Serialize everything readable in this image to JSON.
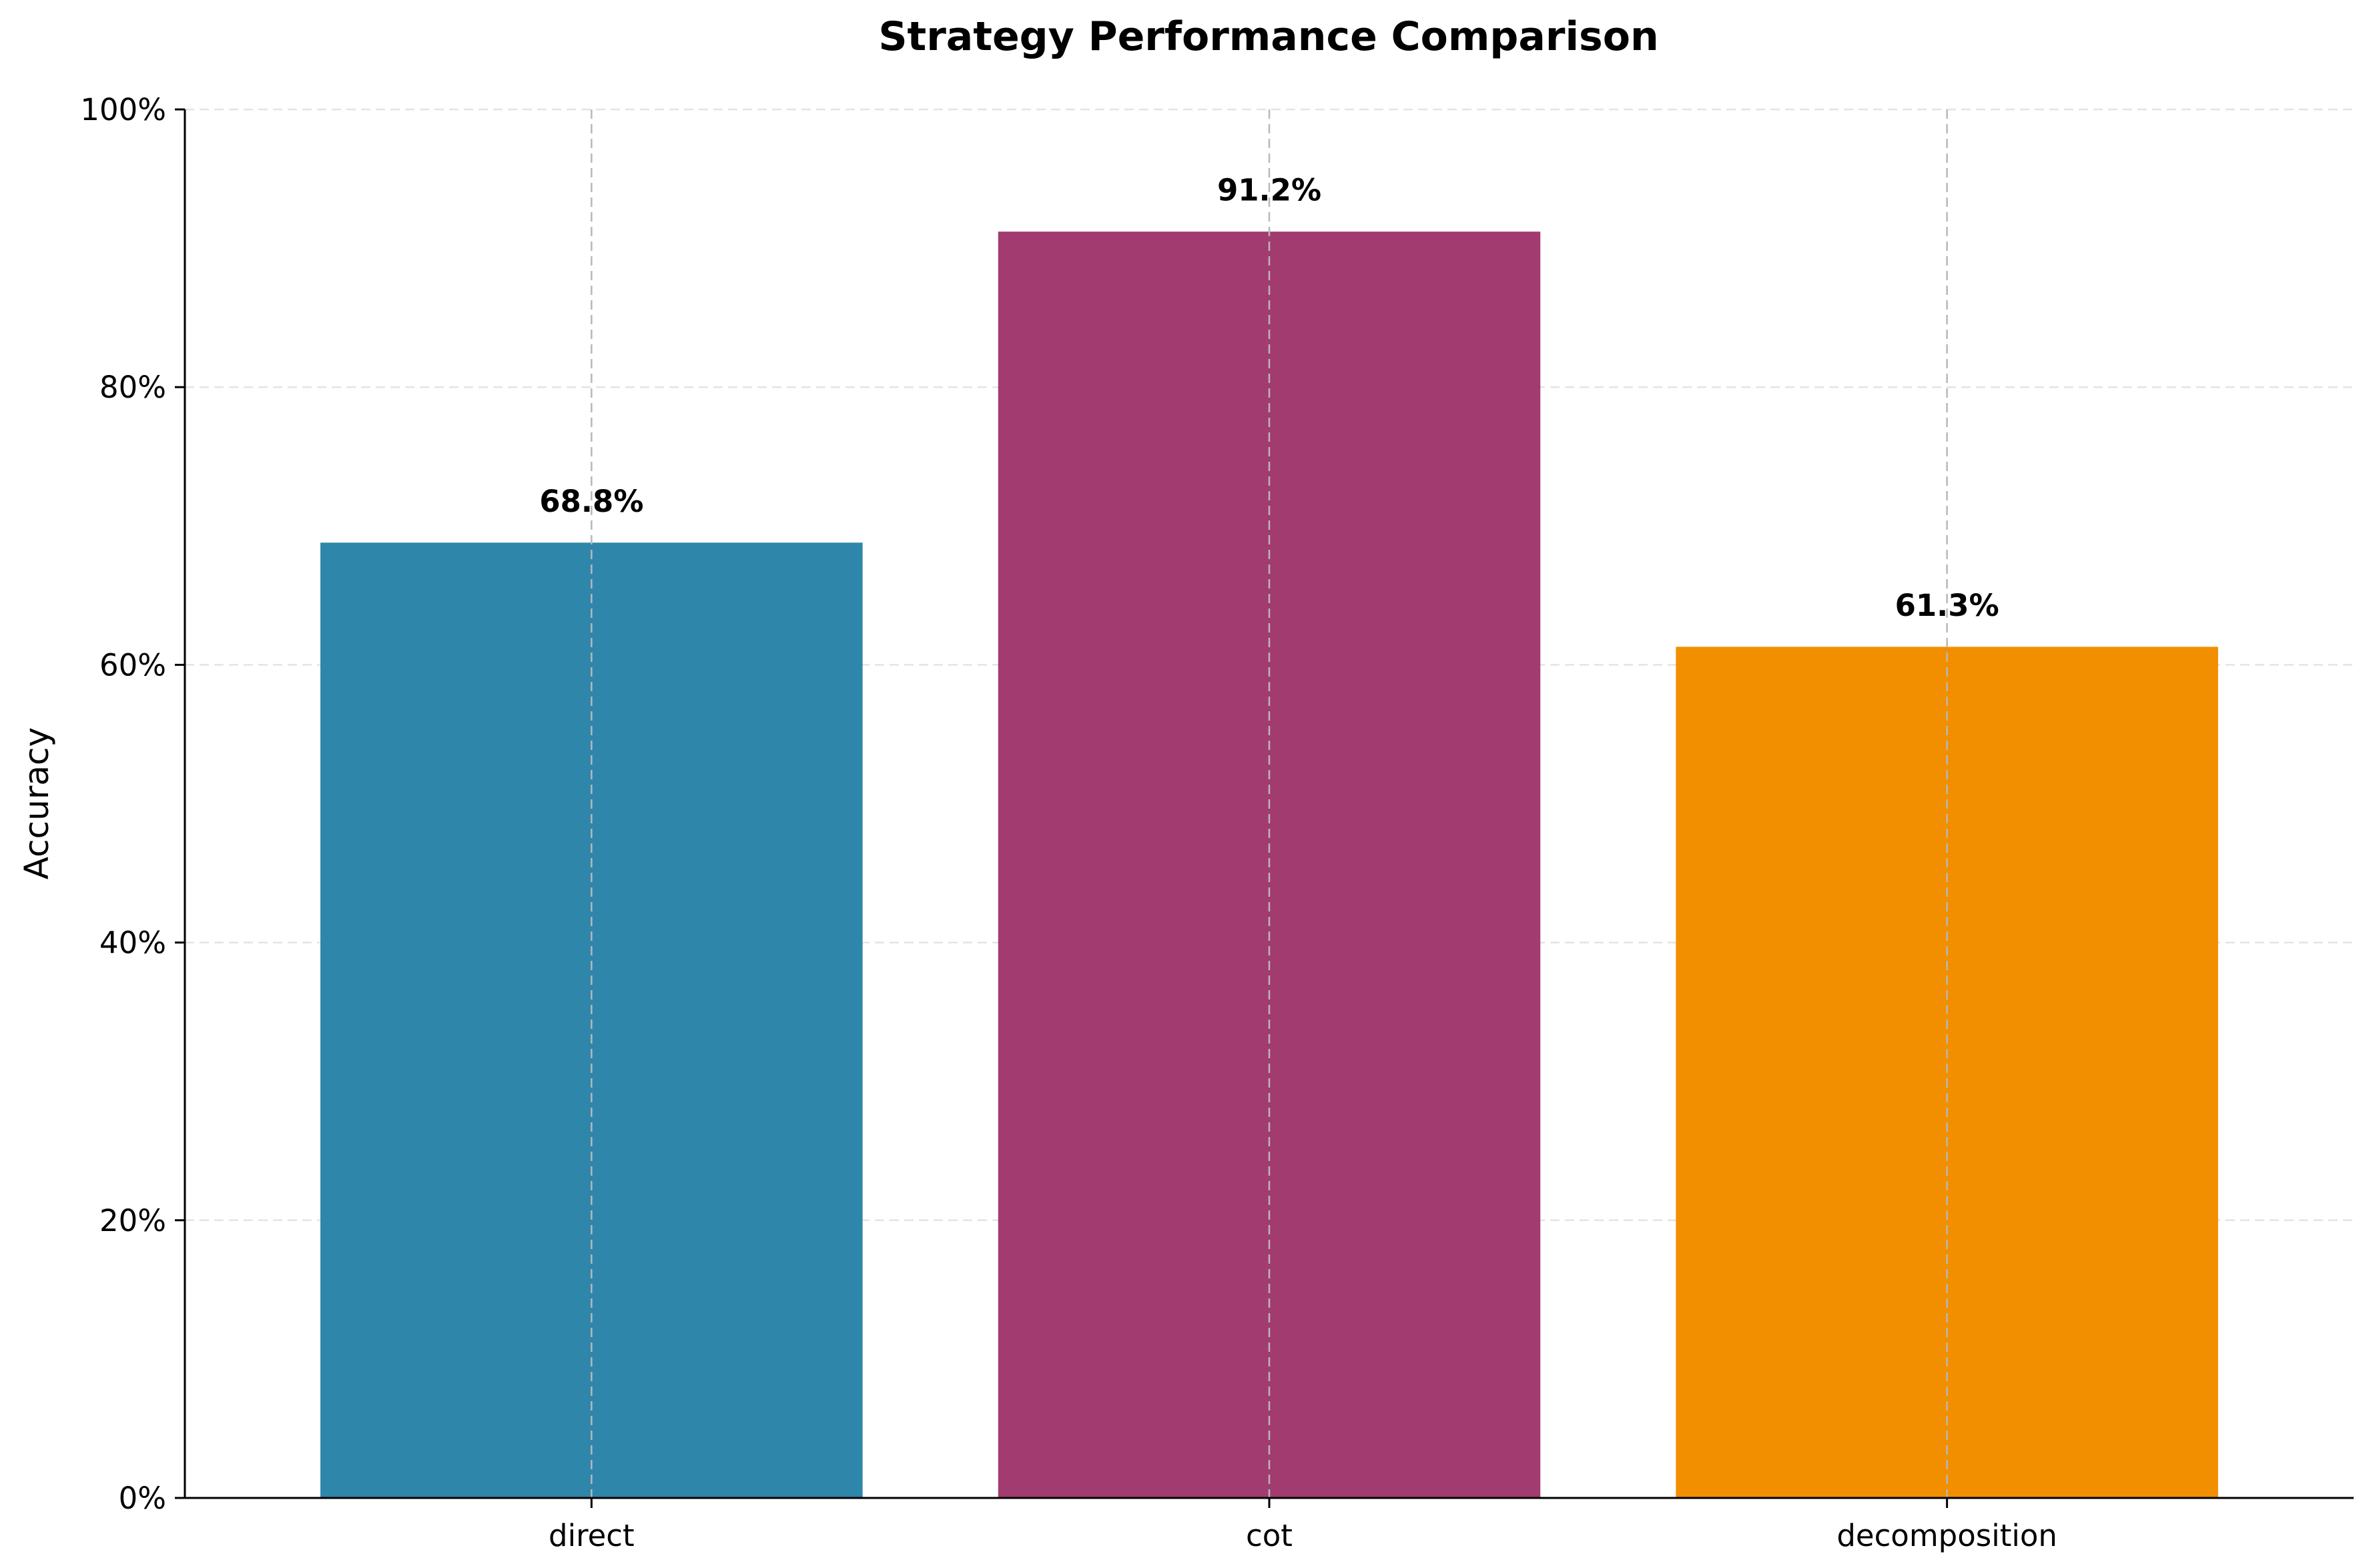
{
  "chart_data": {
    "type": "bar",
    "title": "Strategy Performance Comparison",
    "xlabel": "",
    "ylabel": "Accuracy",
    "categories": [
      "direct",
      "cot",
      "decomposition"
    ],
    "values": [
      68.8,
      91.2,
      61.3
    ],
    "value_labels": [
      "68.8%",
      "91.2%",
      "61.3%"
    ],
    "colors": [
      "#2e86ab",
      "#a23b6f",
      "#f18f01"
    ],
    "ylim": [
      0,
      100
    ],
    "yticks": [
      0,
      20,
      40,
      60,
      80,
      100
    ],
    "ytick_labels": [
      "0%",
      "20%",
      "40%",
      "60%",
      "80%",
      "100%"
    ],
    "grid": true,
    "legend": "none"
  }
}
